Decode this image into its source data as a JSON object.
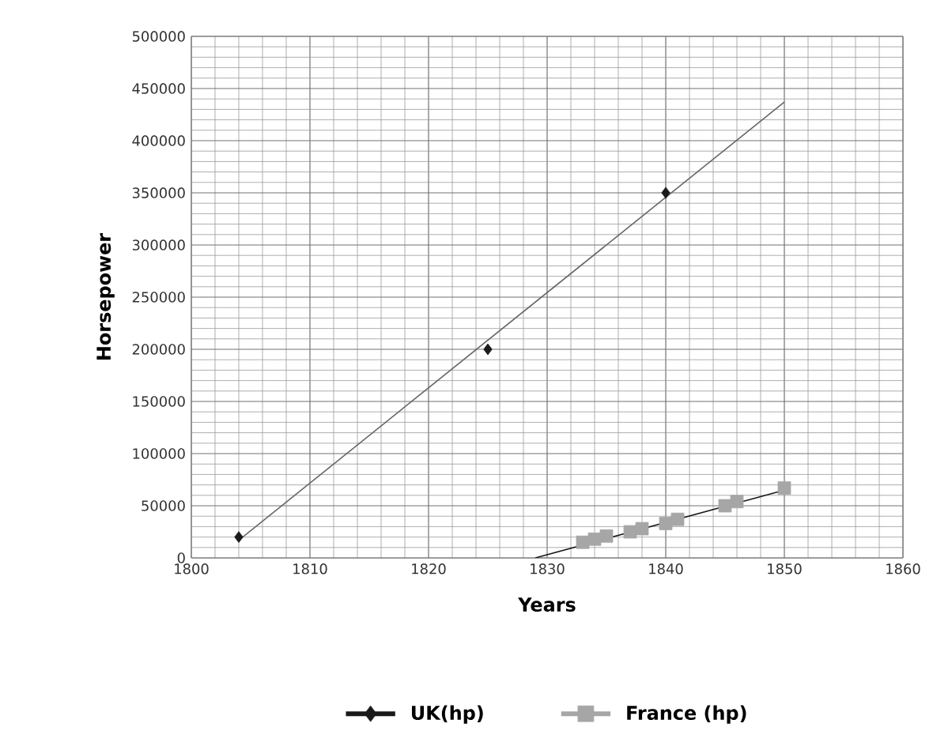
{
  "chart_data": {
    "type": "scatter",
    "xlabel": "Years",
    "ylabel": "Horsepower",
    "xlim": [
      1800,
      1860
    ],
    "xticks": [
      1800,
      1810,
      1820,
      1830,
      1840,
      1850,
      1860
    ],
    "ylim": [
      0,
      500000
    ],
    "yticks": [
      0,
      50000,
      100000,
      150000,
      200000,
      250000,
      300000,
      350000,
      400000,
      450000,
      500000
    ],
    "grid": true,
    "legend": "bottom",
    "series": [
      {
        "name": "UK(hp)",
        "type": "scatter",
        "marker": "diamond",
        "color": "#1a1a1a",
        "x": [
          1804,
          1825,
          1840
        ],
        "values": [
          20000,
          200000,
          350000
        ]
      },
      {
        "name": "France (hp)",
        "type": "scatter",
        "marker": "square",
        "color": "#a6a6a6",
        "x": [
          1833,
          1834,
          1835,
          1837,
          1838,
          1840,
          1841,
          1845,
          1846,
          1850
        ],
        "values": [
          15000,
          18000,
          21000,
          25000,
          28000,
          33000,
          37000,
          50000,
          54000,
          67000
        ]
      },
      {
        "type": "line",
        "marker": "none",
        "color": "#666666",
        "x": [
          1804,
          1850
        ],
        "values": [
          17000,
          437000
        ]
      },
      {
        "type": "line",
        "marker": "none",
        "color": "#1a1a1a",
        "x": [
          1829,
          1850
        ],
        "values": [
          0,
          65000
        ]
      }
    ]
  }
}
